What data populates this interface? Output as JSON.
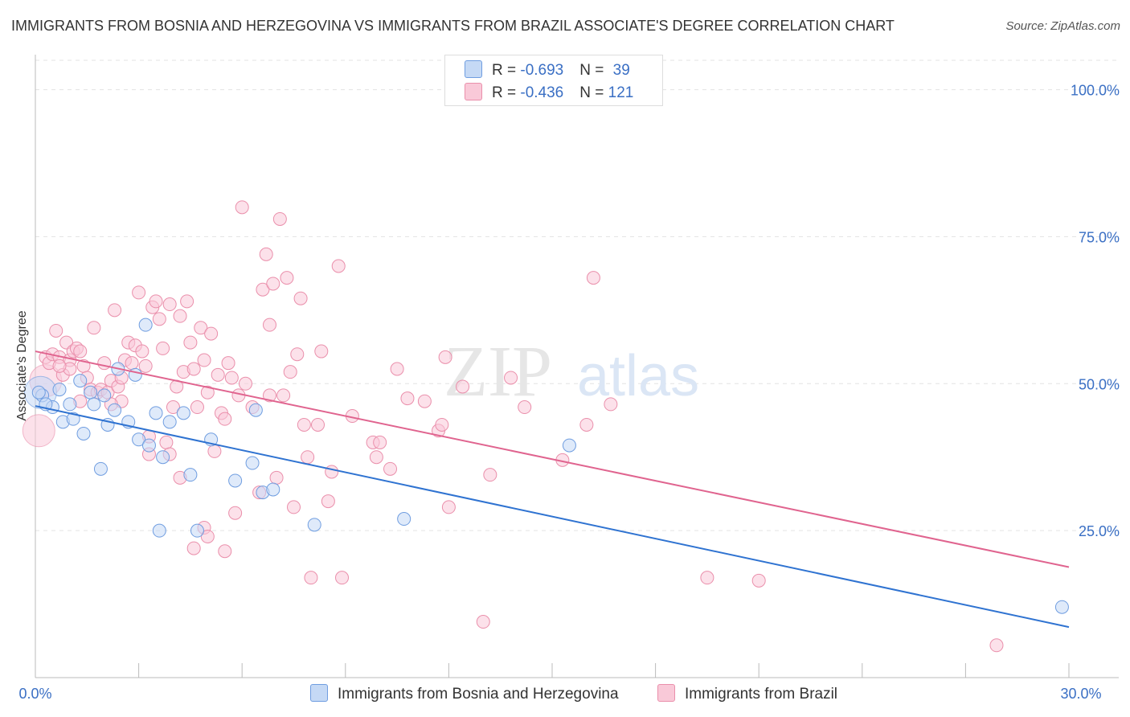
{
  "title": "IMMIGRANTS FROM BOSNIA AND HERZEGOVINA VS IMMIGRANTS FROM BRAZIL ASSOCIATE'S DEGREE CORRELATION CHART",
  "source": "Source: ZipAtlas.com",
  "watermark": {
    "zip": "ZIP",
    "atlas": "atlas"
  },
  "legend": {
    "rows": [
      {
        "r_label": "R = ",
        "r_value": "-0.693",
        "n_label": "N = ",
        "n_value": "39"
      },
      {
        "r_label": "R = ",
        "r_value": "-0.436",
        "n_label": "N = ",
        "n_value": "121"
      }
    ]
  },
  "chart_data": {
    "type": "scatter",
    "xlabel": "",
    "ylabel": "Associate's Degree",
    "xlim": [
      0,
      30
    ],
    "ylim": [
      0,
      105
    ],
    "x_tick_labels": [
      "0.0%",
      "30.0%"
    ],
    "y_ticks": [
      {
        "value": 25,
        "label": "25.0%"
      },
      {
        "value": 50,
        "label": "50.0%"
      },
      {
        "value": 75,
        "label": "75.0%"
      },
      {
        "value": 100,
        "label": "100.0%"
      }
    ],
    "series": [
      {
        "name": "Immigrants from Bosnia and Herzegovina",
        "color": "#6f9de0",
        "fill": "#c5d9f5",
        "trend": {
          "x0": 0,
          "y0": 46.2,
          "x1": 30,
          "y1": 8.6
        },
        "points": [
          [
            0.2,
            48.0
          ],
          [
            0.5,
            46.0
          ],
          [
            0.7,
            49.0
          ],
          [
            0.8,
            43.5
          ],
          [
            1.0,
            46.5
          ],
          [
            1.1,
            44.0
          ],
          [
            1.4,
            41.5
          ],
          [
            1.3,
            50.5
          ],
          [
            1.6,
            48.5
          ],
          [
            1.7,
            46.5
          ],
          [
            1.9,
            35.5
          ],
          [
            2.0,
            48.0
          ],
          [
            2.1,
            43.0
          ],
          [
            2.3,
            45.5
          ],
          [
            2.4,
            52.5
          ],
          [
            2.7,
            43.5
          ],
          [
            2.9,
            51.5
          ],
          [
            3.0,
            40.5
          ],
          [
            3.2,
            60.0
          ],
          [
            3.3,
            39.5
          ],
          [
            3.5,
            45.0
          ],
          [
            3.6,
            25.0
          ],
          [
            3.7,
            37.5
          ],
          [
            3.9,
            43.5
          ],
          [
            4.3,
            45.0
          ],
          [
            4.5,
            34.5
          ],
          [
            4.7,
            25.0
          ],
          [
            5.1,
            40.5
          ],
          [
            5.8,
            33.5
          ],
          [
            6.3,
            36.5
          ],
          [
            6.4,
            45.5
          ],
          [
            6.6,
            31.5
          ],
          [
            6.9,
            32.0
          ],
          [
            8.1,
            26.0
          ],
          [
            10.7,
            27.0
          ],
          [
            15.5,
            39.5
          ],
          [
            29.8,
            12.0
          ],
          [
            0.3,
            46.5
          ],
          [
            0.1,
            48.5
          ]
        ],
        "large_points": [
          {
            "x": 0.15,
            "y": 48.5
          }
        ]
      },
      {
        "name": "Immigrants from Brazil",
        "color": "#ea8fab",
        "fill": "#f9c9d8",
        "trend": {
          "x0": 0,
          "y0": 55.5,
          "x1": 30,
          "y1": 18.8
        },
        "points": [
          [
            0.3,
            54.5
          ],
          [
            0.4,
            53.5
          ],
          [
            0.5,
            55.0
          ],
          [
            0.6,
            59.0
          ],
          [
            0.7,
            54.5
          ],
          [
            0.8,
            51.5
          ],
          [
            0.9,
            57.0
          ],
          [
            1.0,
            54.0
          ],
          [
            1.1,
            55.5
          ],
          [
            1.2,
            56.0
          ],
          [
            1.3,
            55.5
          ],
          [
            1.4,
            53.0
          ],
          [
            1.5,
            51.0
          ],
          [
            1.6,
            49.0
          ],
          [
            1.7,
            59.5
          ],
          [
            1.8,
            48.5
          ],
          [
            1.9,
            49.0
          ],
          [
            2.0,
            53.5
          ],
          [
            2.1,
            48.5
          ],
          [
            2.2,
            50.5
          ],
          [
            2.3,
            62.5
          ],
          [
            2.4,
            49.5
          ],
          [
            2.5,
            47.0
          ],
          [
            2.6,
            54.0
          ],
          [
            2.7,
            57.0
          ],
          [
            2.8,
            53.5
          ],
          [
            2.9,
            56.5
          ],
          [
            3.0,
            65.5
          ],
          [
            3.1,
            55.5
          ],
          [
            3.2,
            53.0
          ],
          [
            3.3,
            41.0
          ],
          [
            3.4,
            63.0
          ],
          [
            3.5,
            64.0
          ],
          [
            3.6,
            61.0
          ],
          [
            3.7,
            56.0
          ],
          [
            3.8,
            40.0
          ],
          [
            3.9,
            63.5
          ],
          [
            4.0,
            46.0
          ],
          [
            4.1,
            49.5
          ],
          [
            4.2,
            61.5
          ],
          [
            4.3,
            52.0
          ],
          [
            4.4,
            64.0
          ],
          [
            4.5,
            57.0
          ],
          [
            4.6,
            52.5
          ],
          [
            4.7,
            46.0
          ],
          [
            4.8,
            59.5
          ],
          [
            4.9,
            54.0
          ],
          [
            5.0,
            48.5
          ],
          [
            5.1,
            58.5
          ],
          [
            5.2,
            38.5
          ],
          [
            5.3,
            51.5
          ],
          [
            5.4,
            45.0
          ],
          [
            5.5,
            44.0
          ],
          [
            5.6,
            53.5
          ],
          [
            5.7,
            51.0
          ],
          [
            5.8,
            28.0
          ],
          [
            5.9,
            48.0
          ],
          [
            6.0,
            80.0
          ],
          [
            6.1,
            50.0
          ],
          [
            6.3,
            46.0
          ],
          [
            6.5,
            31.5
          ],
          [
            6.6,
            66.0
          ],
          [
            6.7,
            72.0
          ],
          [
            6.8,
            60.0
          ],
          [
            6.9,
            67.0
          ],
          [
            7.0,
            34.0
          ],
          [
            7.1,
            78.0
          ],
          [
            7.2,
            48.0
          ],
          [
            7.3,
            68.0
          ],
          [
            7.4,
            52.0
          ],
          [
            7.5,
            29.0
          ],
          [
            7.6,
            55.0
          ],
          [
            7.7,
            64.5
          ],
          [
            7.8,
            43.0
          ],
          [
            7.9,
            37.5
          ],
          [
            8.0,
            17.0
          ],
          [
            8.2,
            43.0
          ],
          [
            8.3,
            55.5
          ],
          [
            8.5,
            30.0
          ],
          [
            8.6,
            35.0
          ],
          [
            8.8,
            70.0
          ],
          [
            8.9,
            17.0
          ],
          [
            9.2,
            44.5
          ],
          [
            9.8,
            40.0
          ],
          [
            9.9,
            37.5
          ],
          [
            10.0,
            40.0
          ],
          [
            10.3,
            35.5
          ],
          [
            10.5,
            52.5
          ],
          [
            10.8,
            47.5
          ],
          [
            11.3,
            47.0
          ],
          [
            11.7,
            42.0
          ],
          [
            11.8,
            43.0
          ],
          [
            11.9,
            54.5
          ],
          [
            12.0,
            29.0
          ],
          [
            12.4,
            49.5
          ],
          [
            13.0,
            9.5
          ],
          [
            13.2,
            34.5
          ],
          [
            13.8,
            51.0
          ],
          [
            14.2,
            46.0
          ],
          [
            15.3,
            37.0
          ],
          [
            16.0,
            43.0
          ],
          [
            16.2,
            68.0
          ],
          [
            16.7,
            46.5
          ],
          [
            19.5,
            17.0
          ],
          [
            21.0,
            16.5
          ],
          [
            27.9,
            5.5
          ],
          [
            4.6,
            22.0
          ],
          [
            4.9,
            25.5
          ],
          [
            5.5,
            21.5
          ],
          [
            3.3,
            38.0
          ],
          [
            2.5,
            51.0
          ],
          [
            1.0,
            52.5
          ],
          [
            0.7,
            53.0
          ],
          [
            1.3,
            47.0
          ],
          [
            2.2,
            46.5
          ],
          [
            4.2,
            34.0
          ],
          [
            3.9,
            38.0
          ],
          [
            5.0,
            24.0
          ],
          [
            6.8,
            48.0
          ]
        ],
        "large_points": [
          {
            "x": 0.1,
            "y": 42.0
          },
          {
            "x": 0.3,
            "y": 50.5
          }
        ]
      }
    ]
  }
}
